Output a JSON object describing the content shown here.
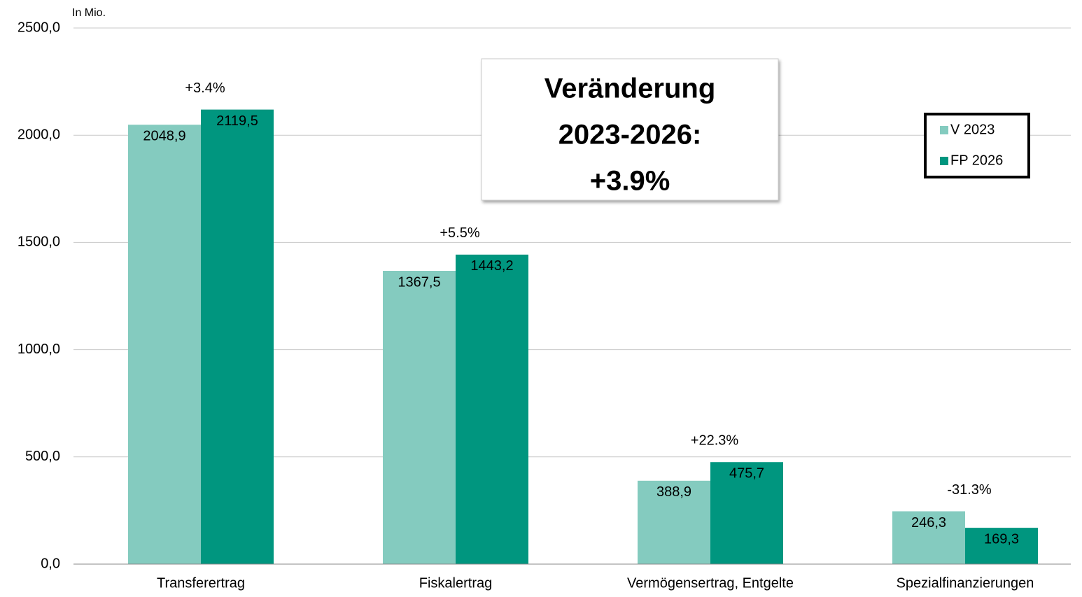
{
  "chart_data": {
    "type": "bar",
    "y_label": "In Mio.",
    "categories": [
      "Transferertrag",
      "Fiskalertrag",
      "Vermögensertrag, Entgelte",
      "Spezialfinanzierungen"
    ],
    "series": [
      {
        "name": "V 2023",
        "color": "#84cbbf",
        "values": [
          2048.9,
          1367.5,
          388.9,
          246.3
        ],
        "value_labels": [
          "2048,9",
          "1367,5",
          "388,9",
          "246,3"
        ]
      },
      {
        "name": "FP 2026",
        "color": "#00967f",
        "values": [
          2119.5,
          1443.2,
          475.7,
          169.3
        ],
        "value_labels": [
          "2119,5",
          "1443,2",
          "475,7",
          "169,3"
        ]
      }
    ],
    "annotations": [
      "+3.4%",
      "+5.5%",
      "+22.3%",
      "-31.3%"
    ],
    "callout": [
      "Veränderung",
      "2023-2026:",
      "+3.9%"
    ],
    "ylim": [
      0,
      2500
    ],
    "yticks": [
      {
        "value": 0,
        "label": "0,0"
      },
      {
        "value": 500,
        "label": "500,0"
      },
      {
        "value": 1000,
        "label": "1000,0"
      },
      {
        "value": 1500,
        "label": "1500,0"
      },
      {
        "value": 2000,
        "label": "2000,0"
      },
      {
        "value": 2500,
        "label": "2500,0"
      }
    ],
    "grid": true,
    "legend": "upper right"
  }
}
